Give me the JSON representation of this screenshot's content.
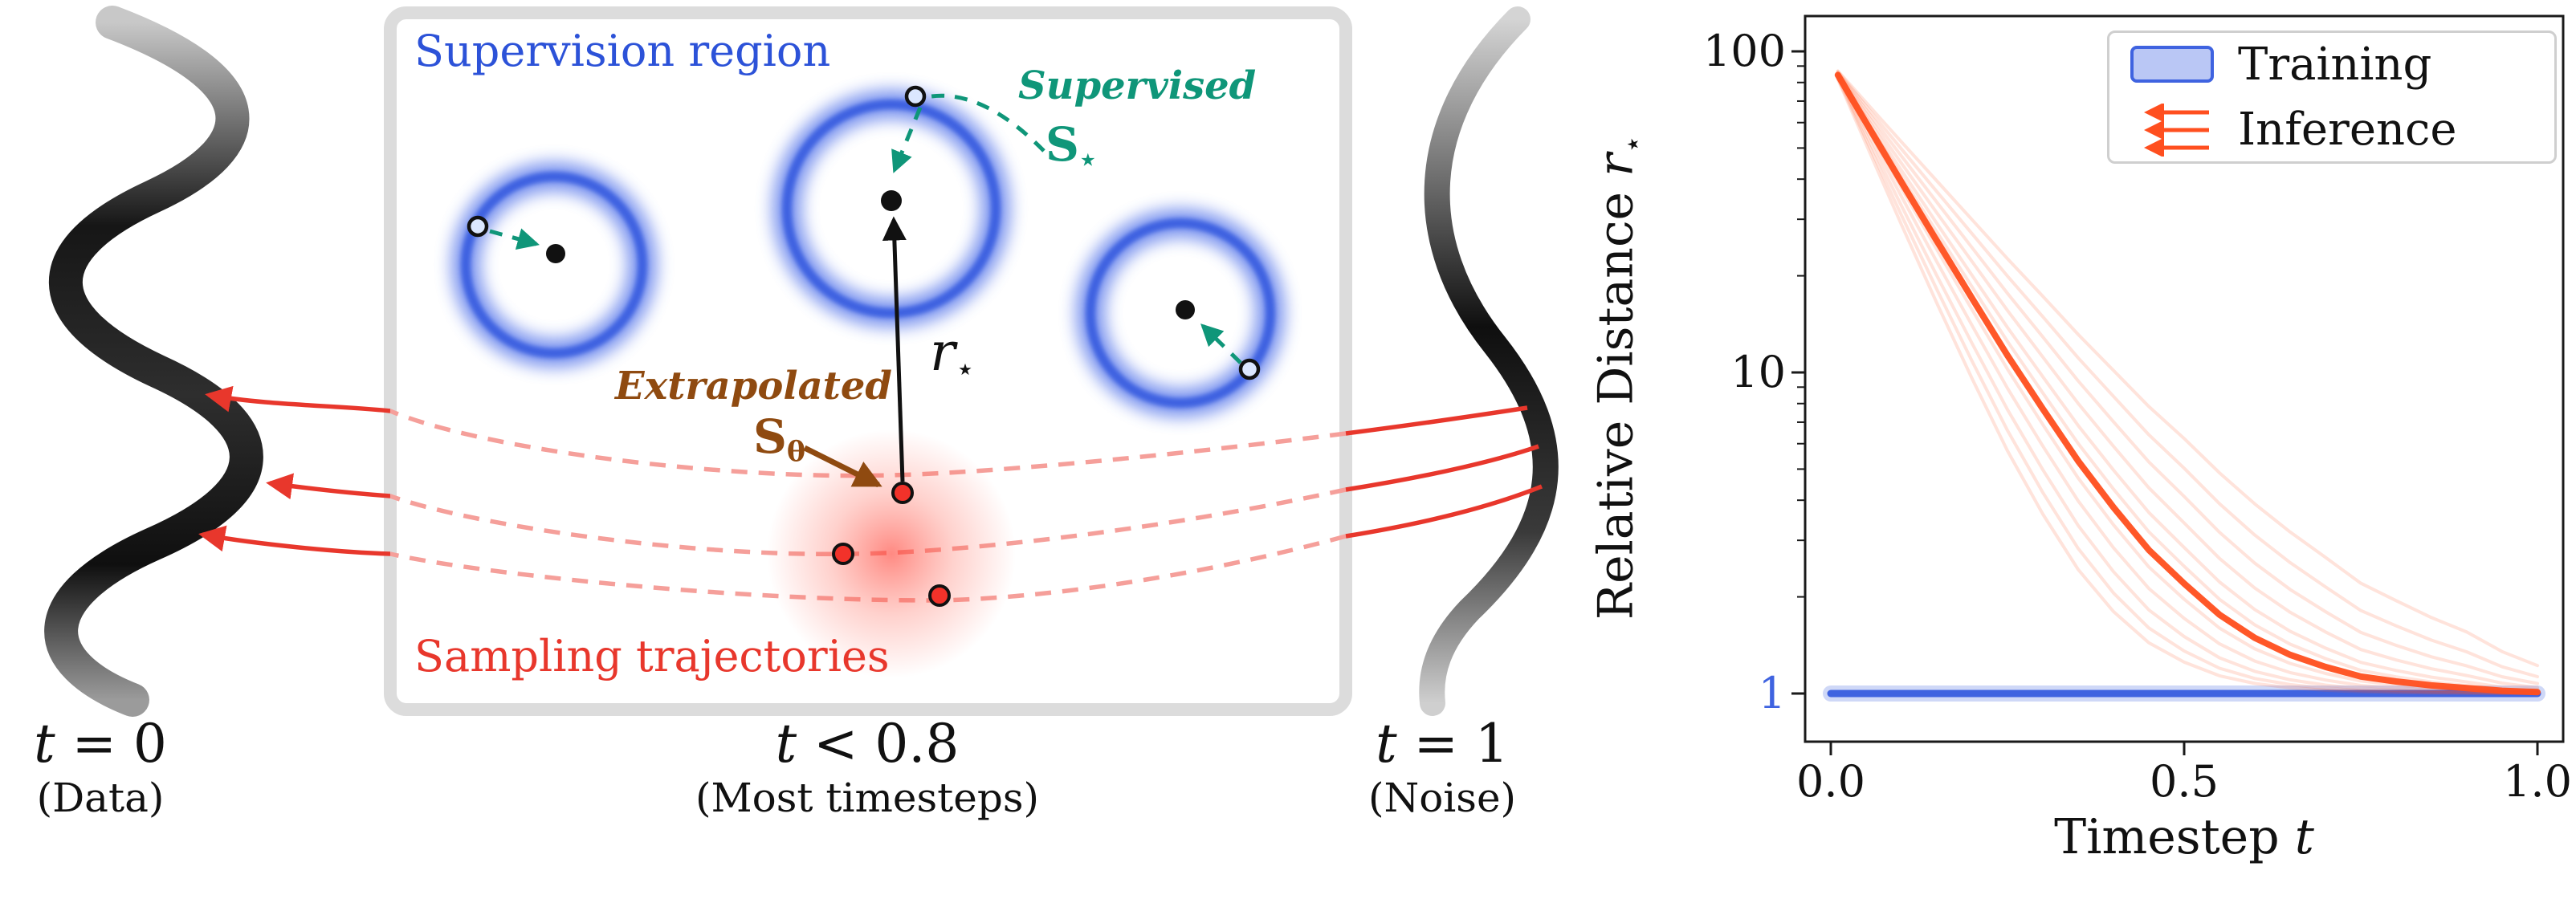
{
  "figure": {
    "supervision_region_label": "Supervision region",
    "supervised_label": "Supervised",
    "supervised_symbol": {
      "base": "S",
      "sub": "⋆"
    },
    "extrapolated_label": "Extrapolated",
    "extrapolated_symbol": {
      "base": "S",
      "sub": "θ"
    },
    "radius_symbol": {
      "base": "r",
      "sub": "⋆"
    },
    "sampling_label": "Sampling trajectories",
    "stages": [
      {
        "var": "t",
        "rest": " = 0",
        "desc": "(Data)"
      },
      {
        "var": "t",
        "rest": " < 0.8",
        "desc": "(Most timesteps)"
      },
      {
        "var": "t",
        "rest": " = 1",
        "desc": "(Noise)"
      }
    ],
    "colors": {
      "supervision_blue": "#2c52d8",
      "ring_blue": "#4169e1",
      "supervised_teal": "#0f9679",
      "extrapolated_brown": "#8f4a10",
      "sampling_red": "#e8372c"
    }
  },
  "chart": {
    "ylabel": {
      "prefix": "Relative Distance ",
      "var": "r",
      "sub": "⋆"
    },
    "xlabel": {
      "prefix": "Timestep ",
      "var": "t"
    },
    "y_ticks": [
      "100",
      "10",
      "1"
    ],
    "x_ticks": [
      "0.0",
      "0.5",
      "1.0"
    ],
    "legend": [
      {
        "label": "Training"
      },
      {
        "label": "Inference"
      }
    ]
  },
  "chart_data": {
    "type": "line",
    "title": "",
    "xlabel": "Timestep t",
    "ylabel": "Relative Distance r⋆",
    "y_scale": "log",
    "xlim": [
      0,
      1
    ],
    "ylim": [
      0.9,
      130
    ],
    "grid": false,
    "legend_position": "upper right",
    "series": [
      {
        "name": "Training",
        "color": "#3f63e0",
        "x": [
          0,
          1
        ],
        "y": [
          1,
          1
        ]
      },
      {
        "name": "Inference",
        "color": "#ff4f1f",
        "x": [
          0.01,
          0.02,
          0.03,
          0.05,
          0.07,
          0.1,
          0.15,
          0.2,
          0.25,
          0.3,
          0.35,
          0.4,
          0.45,
          0.5,
          0.55,
          0.6,
          0.65,
          0.7,
          0.75,
          0.8,
          0.85,
          0.9,
          0.95,
          1.0
        ],
        "y": [
          84.4,
          77.5,
          71.1,
          59.9,
          50.5,
          39.1,
          25.7,
          17.0,
          11.3,
          7.7,
          5.3,
          3.8,
          2.8,
          2.2,
          1.76,
          1.49,
          1.32,
          1.21,
          1.13,
          1.09,
          1.06,
          1.04,
          1.02,
          1.01
        ],
        "r0": 91,
        "band_exponents": [
          0.66,
          0.72,
          0.78,
          0.84,
          0.9,
          0.95,
          1.0,
          1.05,
          1.12,
          1.2,
          1.28,
          1.36
        ]
      }
    ]
  }
}
